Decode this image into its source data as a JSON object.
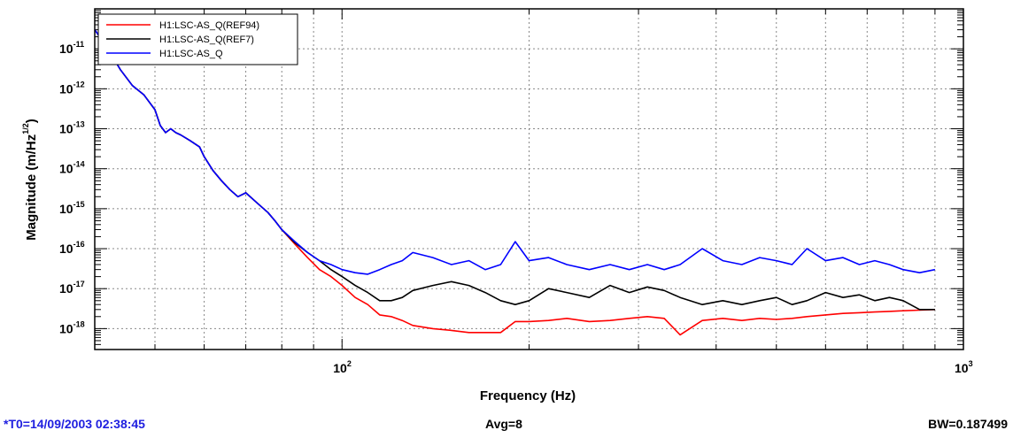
{
  "chart_data": {
    "type": "line",
    "xlabel": "Frequency (Hz)",
    "ylabel": "Magnitude (m/Hz",
    "ylabel_exp": "1/2",
    "ylabel_close": ")",
    "xscale": "log",
    "yscale": "log",
    "xlim": [
      40,
      1000
    ],
    "ylim": [
      3e-19,
      1e-10
    ],
    "grid": true,
    "legend_position": "top-left",
    "x_ticks": [
      {
        "value": 100,
        "base": "10",
        "exp": "2"
      },
      {
        "value": 1000,
        "base": "10",
        "exp": "3"
      }
    ],
    "y_ticks": [
      {
        "value": 1e-11,
        "base": "10",
        "exp": "-11"
      },
      {
        "value": 1e-12,
        "base": "10",
        "exp": "-12"
      },
      {
        "value": 1e-13,
        "base": "10",
        "exp": "-13"
      },
      {
        "value": 1e-14,
        "base": "10",
        "exp": "-14"
      },
      {
        "value": 1e-15,
        "base": "10",
        "exp": "-15"
      },
      {
        "value": 1e-16,
        "base": "10",
        "exp": "-16"
      },
      {
        "value": 1e-17,
        "base": "10",
        "exp": "-17"
      },
      {
        "value": 1e-18,
        "base": "10",
        "exp": "-18"
      }
    ],
    "series": [
      {
        "name": "H1:LSC-AS_Q(REF94)",
        "color": "#ff0000",
        "x": [
          40,
          42,
          44,
          46,
          48,
          50,
          51,
          52,
          53,
          54,
          55,
          57,
          59,
          60,
          62,
          64,
          66,
          68,
          70,
          73,
          76,
          78,
          80,
          84,
          88,
          92,
          96,
          100,
          105,
          110,
          115,
          120,
          125,
          130,
          140,
          150,
          160,
          170,
          180,
          190,
          200,
          215,
          230,
          250,
          270,
          290,
          310,
          330,
          350,
          380,
          410,
          440,
          470,
          500,
          530,
          560,
          600,
          640,
          680,
          720,
          760,
          800,
          850,
          900
        ],
        "y": [
          3e-11,
          1e-11,
          3e-12,
          1.2e-12,
          7e-13,
          3e-13,
          1.2e-13,
          8e-14,
          1e-13,
          8e-14,
          7e-14,
          5e-14,
          3.5e-14,
          2e-14,
          9e-15,
          5e-15,
          3e-15,
          2e-15,
          2.5e-15,
          1.4e-15,
          8e-16,
          5e-16,
          3e-16,
          1.3e-16,
          6e-17,
          3e-17,
          2e-17,
          1.2e-17,
          6e-18,
          4e-18,
          2.2e-18,
          2e-18,
          1.6e-18,
          1.2e-18,
          1e-18,
          9e-19,
          8e-19,
          8e-19,
          8e-19,
          1.5e-18,
          1.5e-18,
          1.6e-18,
          1.8e-18,
          1.5e-18,
          1.6e-18,
          1.8e-18,
          2e-18,
          1.8e-18,
          7e-19,
          1.6e-18,
          1.8e-18,
          1.6e-18,
          1.8e-18,
          1.7e-18,
          1.8e-18,
          2e-18,
          2.2e-18,
          2.4e-18,
          2.5e-18,
          2.6e-18,
          2.7e-18,
          2.8e-18,
          2.9e-18,
          3e-18
        ]
      },
      {
        "name": "H1:LSC-AS_Q(REF7)",
        "color": "#000000",
        "x": [
          40,
          42,
          44,
          46,
          48,
          50,
          51,
          52,
          53,
          54,
          55,
          57,
          59,
          60,
          62,
          64,
          66,
          68,
          70,
          73,
          76,
          78,
          80,
          84,
          88,
          92,
          96,
          100,
          105,
          110,
          115,
          120,
          125,
          130,
          140,
          150,
          160,
          170,
          180,
          190,
          200,
          215,
          230,
          250,
          270,
          290,
          310,
          330,
          350,
          380,
          410,
          440,
          470,
          500,
          530,
          560,
          600,
          640,
          680,
          720,
          760,
          800,
          850,
          900
        ],
        "y": [
          3e-11,
          1e-11,
          3e-12,
          1.2e-12,
          7e-13,
          3e-13,
          1.2e-13,
          8e-14,
          1e-13,
          8e-14,
          7e-14,
          5e-14,
          3.5e-14,
          2e-14,
          9e-15,
          5e-15,
          3e-15,
          2e-15,
          2.5e-15,
          1.4e-15,
          8e-16,
          5e-16,
          3e-16,
          1.4e-16,
          8e-17,
          5e-17,
          3e-17,
          2e-17,
          1.2e-17,
          8e-18,
          5e-18,
          5e-18,
          6e-18,
          9e-18,
          1.2e-17,
          1.5e-17,
          1.2e-17,
          8e-18,
          5e-18,
          4e-18,
          5e-18,
          1e-17,
          8e-18,
          6e-18,
          1.2e-17,
          8e-18,
          1.1e-17,
          9e-18,
          6e-18,
          4e-18,
          5e-18,
          4e-18,
          5e-18,
          6e-18,
          4e-18,
          5e-18,
          8e-18,
          6e-18,
          7e-18,
          5e-18,
          6e-18,
          5e-18,
          3e-18,
          3e-18
        ]
      },
      {
        "name": "H1:LSC-AS_Q",
        "color": "#0000ff",
        "x": [
          40,
          42,
          44,
          46,
          48,
          50,
          51,
          52,
          53,
          54,
          55,
          57,
          59,
          60,
          62,
          64,
          66,
          68,
          70,
          73,
          76,
          78,
          80,
          84,
          88,
          92,
          96,
          100,
          105,
          110,
          115,
          120,
          125,
          130,
          140,
          150,
          160,
          170,
          180,
          190,
          200,
          215,
          230,
          250,
          270,
          290,
          310,
          330,
          350,
          380,
          410,
          440,
          470,
          500,
          530,
          560,
          600,
          640,
          680,
          720,
          760,
          800,
          850,
          900
        ],
        "y": [
          3e-11,
          1e-11,
          3e-12,
          1.2e-12,
          7e-13,
          3e-13,
          1.2e-13,
          8e-14,
          1e-13,
          8e-14,
          7e-14,
          5e-14,
          3.5e-14,
          2e-14,
          9e-15,
          5e-15,
          3e-15,
          2e-15,
          2.5e-15,
          1.4e-15,
          8e-16,
          5e-16,
          3e-16,
          1.5e-16,
          8e-17,
          5e-17,
          4e-17,
          3e-17,
          2.5e-17,
          2.3e-17,
          3e-17,
          4e-17,
          5e-17,
          8e-17,
          6e-17,
          4e-17,
          5e-17,
          3e-17,
          4e-17,
          1.5e-16,
          5e-17,
          6e-17,
          4e-17,
          3e-17,
          4e-17,
          3e-17,
          4e-17,
          3e-17,
          4e-17,
          1e-16,
          5e-17,
          4e-17,
          6e-17,
          5e-17,
          4e-17,
          1e-16,
          5e-17,
          6e-17,
          4e-17,
          5e-17,
          4e-17,
          3e-17,
          2.5e-17,
          3e-17
        ]
      }
    ]
  },
  "footer": {
    "t0": "*T0=14/09/2003 02:38:45",
    "avg": "Avg=8",
    "bw": "BW=0.187499"
  }
}
